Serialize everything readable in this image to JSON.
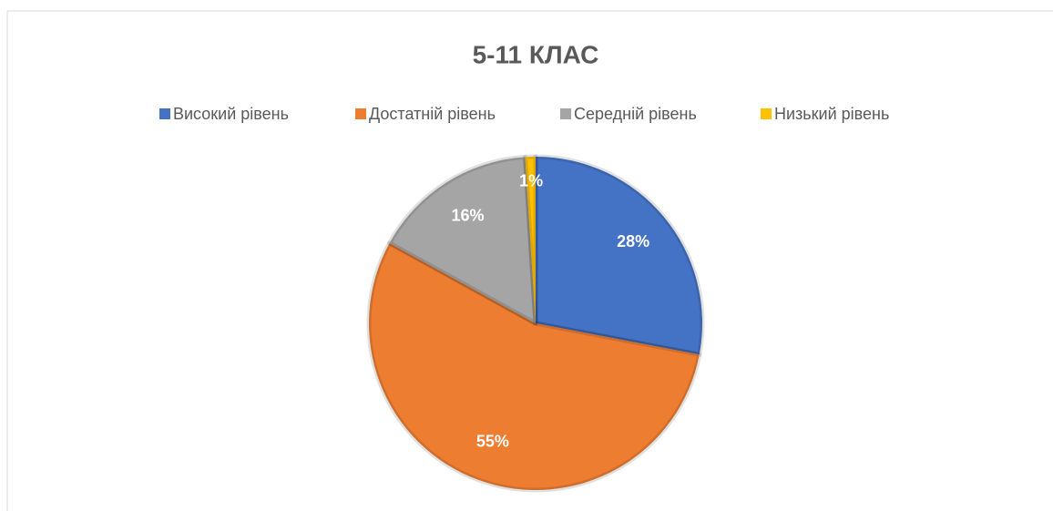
{
  "chart_data": {
    "type": "pie",
    "title": "5-11 КЛАС",
    "categories": [
      "Високий рівень",
      "Достатній рівень",
      "Середній рівень",
      "Низький рівень"
    ],
    "values": [
      28,
      55,
      16,
      1
    ],
    "value_labels": [
      "28%",
      "55%",
      "16%",
      "1%"
    ],
    "colors": [
      "#4472c4",
      "#ed7d31",
      "#a5a5a5",
      "#ffc000"
    ],
    "legend": "top"
  }
}
